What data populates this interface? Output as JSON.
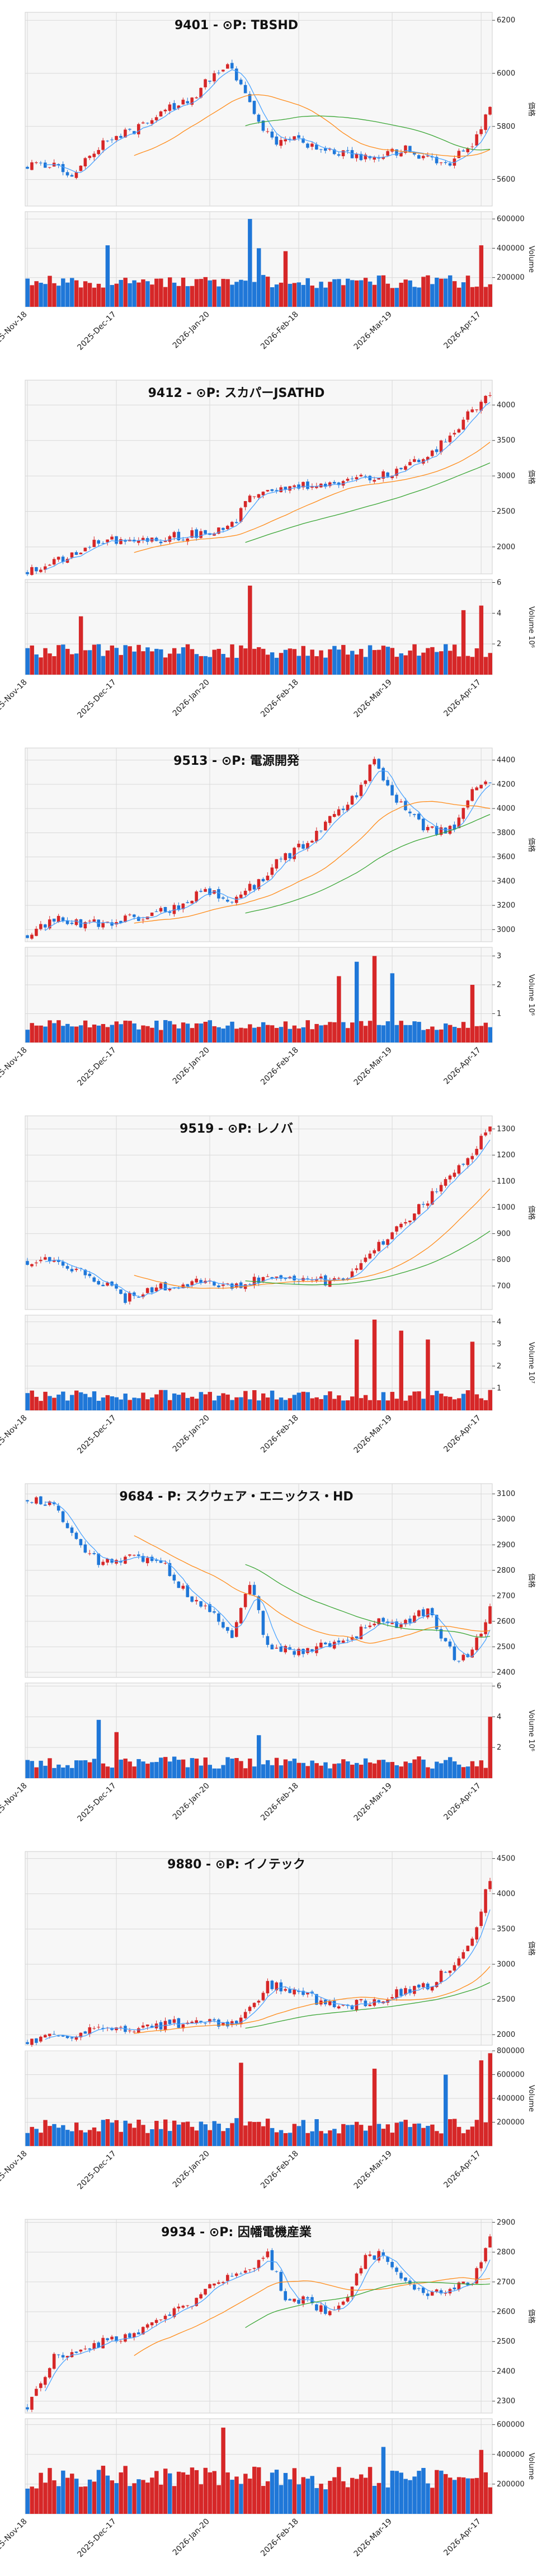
{
  "colors": {
    "up": "#d62728",
    "down": "#1f77d8",
    "ma_short": "#4aa3ff",
    "ma_mid": "#ff8c1a",
    "ma_long": "#3aa635"
  },
  "x_ticks": [
    "2025-Nov-18",
    "2025-Dec-17",
    "2026-Jan-20",
    "2026-Feb-18",
    "2026-Mar-19",
    "2026-Apr-17"
  ],
  "chart_data": [
    {
      "type": "candlestick",
      "title": "9401 - ⊙P: TBSHD",
      "ylabel": "価格",
      "vlabel": "Volume",
      "vunit": "",
      "price_ticks": [
        5600,
        5800,
        6000,
        6200
      ],
      "ylim": [
        5500,
        6230
      ],
      "vol_ticks": [
        200000,
        400000,
        600000
      ],
      "vlim": [
        0,
        650000
      ],
      "path": [
        [
          0,
          5650
        ],
        [
          5,
          5660
        ],
        [
          10,
          5620
        ],
        [
          14,
          5700
        ],
        [
          20,
          5760
        ],
        [
          26,
          5800
        ],
        [
          32,
          5870
        ],
        [
          38,
          5920
        ],
        [
          42,
          6000
        ],
        [
          45,
          6020
        ],
        [
          48,
          5960
        ],
        [
          52,
          5800
        ],
        [
          56,
          5730
        ],
        [
          60,
          5760
        ],
        [
          65,
          5720
        ],
        [
          70,
          5700
        ],
        [
          75,
          5680
        ],
        [
          80,
          5690
        ],
        [
          85,
          5710
        ],
        [
          90,
          5680
        ],
        [
          95,
          5660
        ],
        [
          100,
          5740
        ],
        [
          104,
          5860
        ]
      ],
      "vol_base": 160000,
      "vol_amp": 90000,
      "vol_spikes": [
        [
          18,
          420000
        ],
        [
          50,
          600000
        ],
        [
          52,
          400000
        ],
        [
          58,
          380000
        ],
        [
          102,
          420000
        ]
      ],
      "seed": 11
    },
    {
      "type": "candlestick",
      "title": "9412 - ⊙P: スカパーJSATHD",
      "ylabel": "価格",
      "vlabel": "Volume  10⁶",
      "vunit": "",
      "price_ticks": [
        2000,
        2500,
        3000,
        3500,
        4000
      ],
      "ylim": [
        1620,
        4350
      ],
      "vol_ticks": [
        2,
        4,
        6
      ],
      "vlim": [
        0,
        6.2
      ],
      "path": [
        [
          0,
          1650
        ],
        [
          6,
          1780
        ],
        [
          12,
          1980
        ],
        [
          18,
          2100
        ],
        [
          26,
          2080
        ],
        [
          34,
          2150
        ],
        [
          40,
          2200
        ],
        [
          46,
          2300
        ],
        [
          50,
          2680
        ],
        [
          54,
          2750
        ],
        [
          60,
          2850
        ],
        [
          66,
          2900
        ],
        [
          72,
          2950
        ],
        [
          78,
          3000
        ],
        [
          84,
          3100
        ],
        [
          90,
          3300
        ],
        [
          96,
          3600
        ],
        [
          100,
          3950
        ],
        [
          104,
          4150
        ]
      ],
      "vol_base": 1.4,
      "vol_amp": 0.9,
      "vol_spikes": [
        [
          12,
          3.8
        ],
        [
          50,
          5.8
        ],
        [
          98,
          4.2
        ],
        [
          102,
          4.5
        ]
      ],
      "seed": 23
    },
    {
      "type": "candlestick",
      "title": "9513 - ⊙P: 電源開発",
      "ylabel": "価格",
      "vlabel": "Volume  10⁶",
      "vunit": "",
      "price_ticks": [
        3000,
        3200,
        3400,
        3600,
        3800,
        4000,
        4200,
        4400
      ],
      "ylim": [
        2900,
        4500
      ],
      "vol_ticks": [
        1,
        2,
        3
      ],
      "vlim": [
        0,
        3.3
      ],
      "path": [
        [
          0,
          2950
        ],
        [
          6,
          3100
        ],
        [
          12,
          3050
        ],
        [
          18,
          3060
        ],
        [
          26,
          3100
        ],
        [
          34,
          3200
        ],
        [
          40,
          3320
        ],
        [
          46,
          3220
        ],
        [
          52,
          3400
        ],
        [
          56,
          3550
        ],
        [
          62,
          3700
        ],
        [
          68,
          3900
        ],
        [
          74,
          4100
        ],
        [
          78,
          4420
        ],
        [
          82,
          4100
        ],
        [
          86,
          3950
        ],
        [
          90,
          3820
        ],
        [
          96,
          3830
        ],
        [
          100,
          4150
        ],
        [
          104,
          4250
        ]
      ],
      "vol_base": 0.55,
      "vol_amp": 0.35,
      "vol_spikes": [
        [
          70,
          2.3
        ],
        [
          74,
          2.8
        ],
        [
          78,
          3.0
        ],
        [
          82,
          2.4
        ],
        [
          100,
          2.0
        ]
      ],
      "seed": 37
    },
    {
      "type": "candlestick",
      "title": "9519 - ⊙P: レノバ",
      "ylabel": "価格",
      "vlabel": "Volume  10⁷",
      "vunit": "",
      "price_ticks": [
        700,
        800,
        900,
        1000,
        1100,
        1200,
        1300
      ],
      "ylim": [
        610,
        1350
      ],
      "vol_ticks": [
        1,
        2,
        3,
        4
      ],
      "vlim": [
        0,
        4.3
      ],
      "path": [
        [
          0,
          790
        ],
        [
          6,
          800
        ],
        [
          12,
          760
        ],
        [
          18,
          700
        ],
        [
          22,
          650
        ],
        [
          28,
          690
        ],
        [
          34,
          700
        ],
        [
          40,
          720
        ],
        [
          46,
          700
        ],
        [
          52,
          720
        ],
        [
          58,
          740
        ],
        [
          64,
          720
        ],
        [
          70,
          720
        ],
        [
          76,
          800
        ],
        [
          82,
          900
        ],
        [
          88,
          1000
        ],
        [
          94,
          1100
        ],
        [
          100,
          1200
        ],
        [
          104,
          1320
        ]
      ],
      "vol_base": 0.6,
      "vol_amp": 0.5,
      "vol_spikes": [
        [
          74,
          3.2
        ],
        [
          78,
          4.1
        ],
        [
          84,
          3.6
        ],
        [
          90,
          3.2
        ],
        [
          100,
          3.1
        ]
      ],
      "seed": 41
    },
    {
      "type": "candlestick",
      "title": "9684 - P: スクウェア・エニックス・HD",
      "ylabel": "価格",
      "vlabel": "Volume  10⁶",
      "vunit": "",
      "price_ticks": [
        2400,
        2500,
        2600,
        2700,
        2800,
        2900,
        3000,
        3100
      ],
      "ylim": [
        2380,
        3140
      ],
      "vol_ticks": [
        2,
        4,
        6
      ],
      "vlim": [
        0,
        6.2
      ],
      "path": [
        [
          0,
          3080
        ],
        [
          6,
          3060
        ],
        [
          12,
          2900
        ],
        [
          16,
          2830
        ],
        [
          22,
          2850
        ],
        [
          30,
          2840
        ],
        [
          36,
          2700
        ],
        [
          42,
          2620
        ],
        [
          46,
          2550
        ],
        [
          50,
          2750
        ],
        [
          54,
          2500
        ],
        [
          60,
          2480
        ],
        [
          66,
          2500
        ],
        [
          72,
          2520
        ],
        [
          78,
          2600
        ],
        [
          84,
          2580
        ],
        [
          90,
          2650
        ],
        [
          96,
          2450
        ],
        [
          100,
          2480
        ],
        [
          104,
          2650
        ]
      ],
      "vol_base": 0.9,
      "vol_amp": 0.8,
      "vol_spikes": [
        [
          16,
          3.8
        ],
        [
          20,
          3.0
        ],
        [
          52,
          2.8
        ],
        [
          104,
          4.0
        ]
      ],
      "seed": 53
    },
    {
      "type": "candlestick",
      "title": "9880 - ⊙P: イノテック",
      "ylabel": "価格",
      "vlabel": "Volume",
      "vunit": "",
      "price_ticks": [
        2000,
        2500,
        3000,
        3500,
        4000,
        4500
      ],
      "ylim": [
        1850,
        4600
      ],
      "vol_ticks": [
        200000,
        400000,
        600000,
        800000
      ],
      "vlim": [
        0,
        800000
      ],
      "path": [
        [
          0,
          1900
        ],
        [
          8,
          2000
        ],
        [
          16,
          2050
        ],
        [
          24,
          2100
        ],
        [
          32,
          2150
        ],
        [
          40,
          2200
        ],
        [
          46,
          2150
        ],
        [
          50,
          2400
        ],
        [
          54,
          2700
        ],
        [
          60,
          2650
        ],
        [
          66,
          2450
        ],
        [
          72,
          2400
        ],
        [
          78,
          2500
        ],
        [
          84,
          2600
        ],
        [
          90,
          2700
        ],
        [
          96,
          3000
        ],
        [
          100,
          3300
        ],
        [
          102,
          3800
        ],
        [
          104,
          4200
        ]
      ],
      "vol_base": 150000,
      "vol_amp": 130000,
      "vol_spikes": [
        [
          48,
          700000
        ],
        [
          78,
          650000
        ],
        [
          94,
          600000
        ],
        [
          102,
          720000
        ],
        [
          104,
          780000
        ]
      ],
      "seed": 67
    },
    {
      "type": "candlestick",
      "title": "9934 - ⊙P: 因幡電機産業",
      "ylabel": "価格",
      "vlabel": "Volume",
      "vunit": "",
      "price_ticks": [
        2300,
        2400,
        2500,
        2600,
        2700,
        2800,
        2900
      ],
      "ylim": [
        2260,
        2910
      ],
      "vol_ticks": [
        200000,
        400000,
        600000
      ],
      "vlim": [
        0,
        640000
      ],
      "path": [
        [
          0,
          2280
        ],
        [
          6,
          2450
        ],
        [
          12,
          2480
        ],
        [
          18,
          2500
        ],
        [
          24,
          2530
        ],
        [
          30,
          2580
        ],
        [
          36,
          2620
        ],
        [
          42,
          2700
        ],
        [
          48,
          2720
        ],
        [
          54,
          2790
        ],
        [
          58,
          2650
        ],
        [
          62,
          2640
        ],
        [
          68,
          2600
        ],
        [
          72,
          2660
        ],
        [
          76,
          2780
        ],
        [
          80,
          2790
        ],
        [
          84,
          2720
        ],
        [
          90,
          2650
        ],
        [
          96,
          2680
        ],
        [
          100,
          2700
        ],
        [
          104,
          2840
        ]
      ],
      "vol_base": 220000,
      "vol_amp": 160000,
      "vol_spikes": [
        [
          44,
          580000
        ],
        [
          80,
          450000
        ],
        [
          102,
          430000
        ]
      ],
      "seed": 79
    }
  ]
}
